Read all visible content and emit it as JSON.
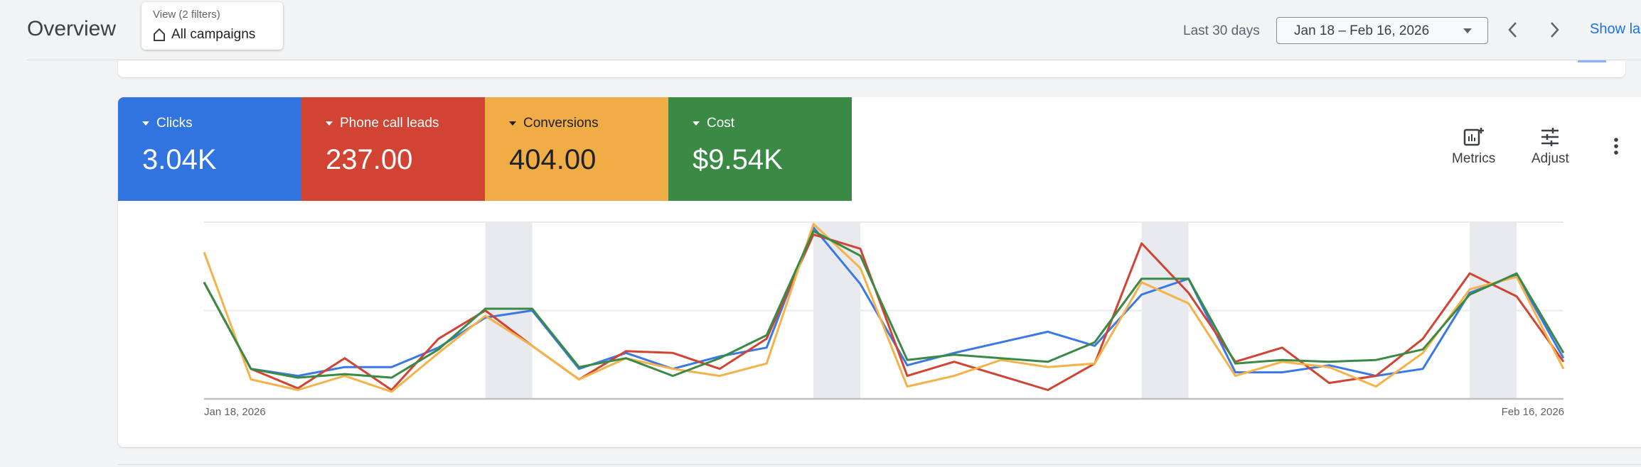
{
  "header": {
    "title": "Overview",
    "filter": {
      "caption": "View (2 filters)",
      "value": "All campaigns",
      "icon": "home-icon"
    },
    "date_range_label": "Last 30 days",
    "date_range_value": "Jan 18 – Feb 16, 2026",
    "show_link": "Show la"
  },
  "metrics": [
    {
      "label": "Clicks",
      "value": "3.04K",
      "color": "#3174e0",
      "text_color": "#ffffff"
    },
    {
      "label": "Phone call leads",
      "value": "237.00",
      "color": "#d14333",
      "text_color": "#ffffff"
    },
    {
      "label": "Conversions",
      "value": "404.00",
      "color": "#f0ad45",
      "text_color": "#202124"
    },
    {
      "label": "Cost",
      "value": "$9.54K",
      "color": "#3a8a45",
      "text_color": "#ffffff"
    }
  ],
  "toolbar": {
    "metrics_label": "Metrics",
    "adjust_label": "Adjust"
  },
  "chart_data": {
    "type": "line",
    "x_start_label": "Jan 18, 2026",
    "x_end_label": "Feb 16, 2026",
    "ylim": [
      0,
      100
    ],
    "grid": true,
    "weekend_bands": [
      [
        6,
        7
      ],
      [
        13,
        14
      ],
      [
        20,
        21
      ],
      [
        27,
        28
      ]
    ],
    "series": [
      {
        "metric": "Clicks",
        "color": "#3b78e7",
        "values": [
          66,
          17,
          13,
          18,
          18,
          29,
          46,
          50,
          17,
          26,
          17,
          24,
          29,
          97,
          65,
          19,
          26,
          32,
          38,
          30,
          59,
          68,
          15,
          15,
          19,
          13,
          17,
          60,
          70,
          23
        ]
      },
      {
        "metric": "Phone call leads",
        "color": "#d14333",
        "values": [
          66,
          17,
          6,
          23,
          5,
          34,
          50,
          30,
          11,
          27,
          26,
          17,
          34,
          93,
          85,
          13,
          21,
          13,
          5,
          20,
          88,
          60,
          21,
          29,
          9,
          13,
          34,
          71,
          58,
          21
        ]
      },
      {
        "metric": "Conversions",
        "color": "#f4b34a",
        "values": [
          83,
          11,
          5,
          13,
          4,
          26,
          47,
          30,
          11,
          23,
          17,
          13,
          20,
          99,
          74,
          7,
          13,
          22,
          18,
          20,
          66,
          54,
          13,
          21,
          18,
          7,
          26,
          62,
          69,
          17
        ]
      },
      {
        "metric": "Cost",
        "color": "#3a8a45",
        "values": [
          66,
          17,
          12,
          14,
          12,
          28,
          51,
          51,
          18,
          23,
          13,
          23,
          36,
          95,
          81,
          22,
          25,
          23,
          21,
          32,
          68,
          68,
          20,
          22,
          21,
          22,
          28,
          59,
          71,
          26
        ]
      }
    ]
  }
}
